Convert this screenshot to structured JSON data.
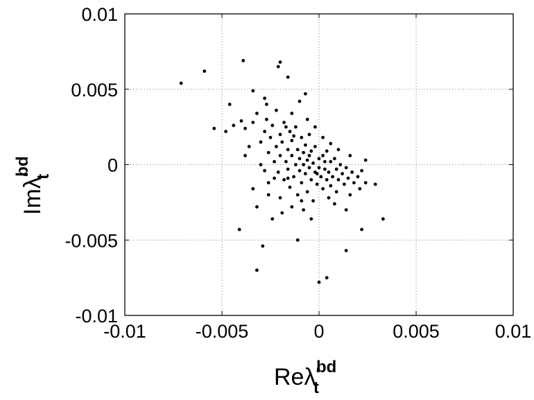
{
  "chart_data": {
    "type": "scatter",
    "xlabel": {
      "main": "Reλ",
      "prime": "′",
      "sub": "t",
      "sup": "bd"
    },
    "ylabel": {
      "main": "Imλ",
      "prime": "′",
      "sub": "t",
      "sup": "bd"
    },
    "xlim": [
      -0.01,
      0.01
    ],
    "ylim": [
      -0.01,
      0.01
    ],
    "xticks": [
      -0.01,
      -0.005,
      0,
      0.005,
      0.01
    ],
    "yticks": [
      -0.01,
      -0.005,
      0,
      0.005,
      0.01
    ],
    "grid": true,
    "color": "#000000",
    "x": [
      -0.003,
      -0.0028,
      -0.0026,
      -0.0025,
      -0.0024,
      -0.0023,
      -0.0022,
      -0.0021,
      -0.002,
      -0.002,
      -0.0019,
      -0.0018,
      -0.0018,
      -0.0017,
      -0.0016,
      -0.0016,
      -0.0015,
      -0.0015,
      -0.0014,
      -0.0014,
      -0.0013,
      -0.0012,
      -0.0012,
      -0.0011,
      -0.0011,
      -0.001,
      -0.001,
      -0.0009,
      -0.0009,
      -0.0008,
      -0.0008,
      -0.0007,
      -0.0007,
      -0.0006,
      -0.0006,
      -0.0005,
      -0.0005,
      -0.0004,
      -0.0004,
      -0.0003,
      -0.0003,
      -0.0002,
      -0.0002,
      -0.0001,
      0,
      0,
      0.0001,
      0.0002,
      0.0002,
      0.0003,
      0.0004,
      0.0004,
      0.0005,
      0.0006,
      0.0006,
      0.0007,
      0.0008,
      0.0009,
      0.0009,
      0.001,
      0.0011,
      0.0012,
      0.0013,
      0.0014,
      0.0015,
      0.0016,
      0.0017,
      0.0018,
      0.002,
      0.0021,
      0.0022,
      -0.0034,
      -0.0036,
      -0.0038,
      -0.004,
      -0.0044,
      -0.0032,
      -0.0022,
      -0.0014,
      -0.0006,
      0.0002,
      -0.0026,
      -0.002,
      -0.0014,
      -0.0008,
      -0.0028,
      -0.0032,
      -0.0024,
      0.0008,
      0.0014,
      -0.001,
      -0.0028,
      -0.0004,
      0.001,
      -0.003,
      -0.0026,
      -0.0019,
      -0.0002,
      0.0006,
      0.0016,
      0.0024,
      -0.0048,
      -0.0038,
      -0.0034,
      -0.0016,
      -0.0013,
      -0.0005,
      0.0003,
      -0.0023,
      -0.0017,
      -0.0009,
      -0.0027,
      -0.0001,
      0.0005,
      -0.0071,
      -0.0059,
      -0.0039,
      -0.002,
      -0.0021,
      -0.0032,
      0,
      0.0004,
      0.0033,
      0.0029,
      0.0024,
      -0.0054,
      -0.0041,
      -0.0029,
      -0.0011,
      0.0014,
      0.0022,
      -0.0007,
      -0.0034,
      -0.0046,
      -0.0027,
      -0.0016
    ],
    "values": [
      0.0015,
      0.0022,
      0.0008,
      0.0018,
      0.0026,
      0.0002,
      0.0012,
      -0.0005,
      0.002,
      0.0006,
      0.0015,
      -0.001,
      0.0028,
      0.0002,
      0.001,
      -0.0003,
      0.0022,
      -0.0015,
      0.0006,
      0.0016,
      -0.0008,
      0,
      0.0025,
      0.001,
      -0.002,
      0.0004,
      -0.0004,
      0.0018,
      -0.0012,
      0.0008,
      0,
      -0.0006,
      0.0013,
      -0.0018,
      0.0003,
      0.002,
      -0.0002,
      0.0009,
      -0.001,
      0.0001,
      -0.0024,
      0.0012,
      -0.0005,
      -0.0013,
      0.0004,
      -0.0002,
      -0.0008,
      0.0006,
      -0.0016,
      -0.0003,
      0.0009,
      -0.001,
      -0.0005,
      0.0002,
      -0.0014,
      -0.0008,
      0.0004,
      -0.0003,
      -0.0018,
      -0.001,
      0,
      -0.0006,
      -0.0013,
      -0.0002,
      -0.0009,
      -0.002,
      -0.0005,
      -0.0012,
      -0.0008,
      -0.0016,
      -0.0004,
      0.0028,
      0.0012,
      0.0024,
      0.0029,
      0.0026,
      0.0034,
      0.0036,
      0.0034,
      0.003,
      0.0018,
      -0.0012,
      -0.0022,
      -0.0028,
      -0.003,
      -0.0004,
      -0.0028,
      -0.0036,
      -0.0026,
      -0.003,
      0.0042,
      0.0044,
      -0.0036,
      0.001,
      0,
      -0.002,
      -0.0032,
      0.0025,
      0.0014,
      0.0006,
      -0.0012,
      0.0022,
      0.0006,
      -0.0016,
      -0.0009,
      0.0019,
      0.0006,
      0.0002,
      -0.0009,
      0.0025,
      -0.0024,
      0.003,
      -0.0006,
      -0.0022,
      0.0054,
      0.0062,
      0.0069,
      0.0068,
      0.0065,
      -0.007,
      -0.0078,
      -0.0075,
      -0.0036,
      -0.0013,
      0.0003,
      0.0024,
      -0.0043,
      -0.0054,
      -0.005,
      -0.0057,
      -0.0043,
      0.0047,
      0.0049,
      0.004,
      0.004,
      0.0058
    ]
  }
}
